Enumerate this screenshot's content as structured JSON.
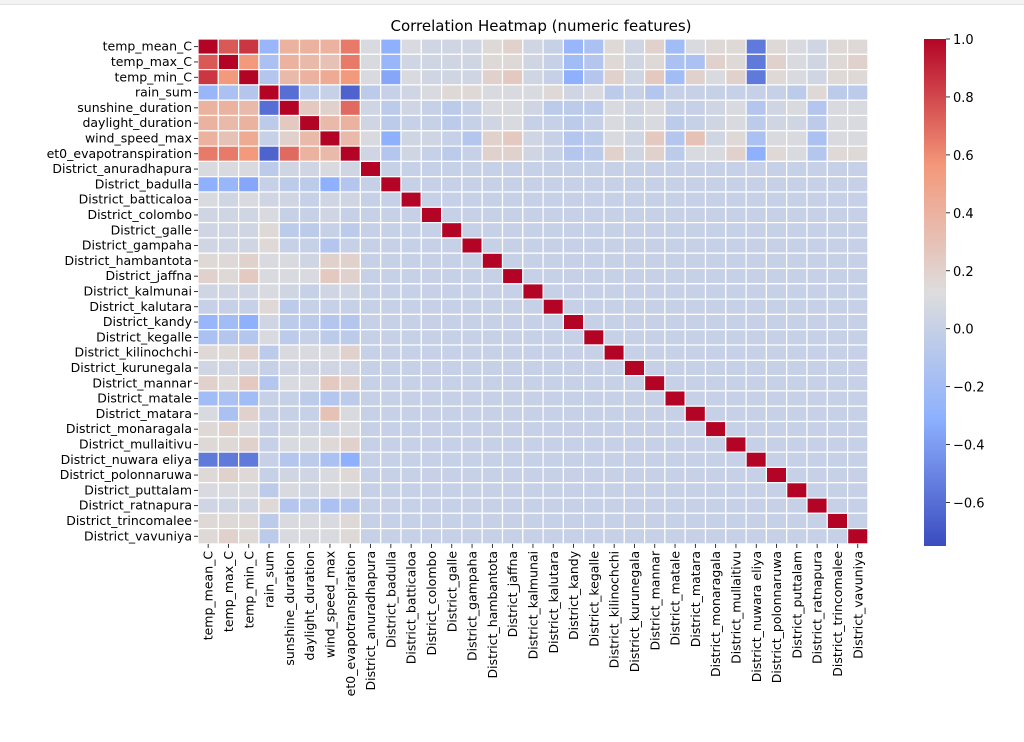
{
  "chart_data": {
    "type": "heatmap",
    "title": "Correlation Heatmap (numeric features)",
    "xlabel": "",
    "ylabel": "",
    "labels": [
      "temp_mean_C",
      "temp_max_C",
      "temp_min_C",
      "rain_sum",
      "sunshine_duration",
      "daylight_duration",
      "wind_speed_max",
      "et0_evapotranspiration",
      "District_anuradhapura",
      "District_badulla",
      "District_batticaloa",
      "District_colombo",
      "District_galle",
      "District_gampaha",
      "District_hambantota",
      "District_jaffna",
      "District_kalmunai",
      "District_kalutara",
      "District_kandy",
      "District_kegalle",
      "District_kilinochchi",
      "District_kurunegala",
      "District_mannar",
      "District_matale",
      "District_matara",
      "District_monaragala",
      "District_mullaitivu",
      "District_nuwara eliya",
      "District_polonnaruwa",
      "District_puttalam",
      "District_ratnapura",
      "District_trincomalee",
      "District_vavuniya"
    ],
    "colorbar": {
      "min": -0.75,
      "max": 1.0,
      "ticks": [
        1.0,
        0.8,
        0.6,
        0.4,
        0.2,
        0.0,
        -0.2,
        -0.4,
        -0.6
      ],
      "tick_labels": [
        "1.0",
        "0.8",
        "0.6",
        "0.4",
        "0.2",
        "0.0",
        "−0.2",
        "−0.4",
        "−0.6"
      ],
      "colormap": "coolwarm"
    },
    "matrix": [
      [
        1.0,
        0.75,
        0.85,
        -0.25,
        0.4,
        0.4,
        0.4,
        0.65,
        0.1,
        -0.3,
        0.1,
        0.05,
        0.05,
        0.05,
        0.15,
        0.2,
        0.05,
        0.0,
        -0.25,
        -0.15,
        0.15,
        0.05,
        0.2,
        -0.2,
        0.1,
        0.15,
        0.15,
        -0.55,
        0.15,
        0.1,
        0.05,
        0.15,
        0.15
      ],
      [
        0.75,
        1.0,
        0.55,
        -0.15,
        0.4,
        0.35,
        0.3,
        0.65,
        0.1,
        -0.25,
        0.05,
        0.05,
        0.05,
        0.05,
        0.15,
        0.15,
        0.05,
        0.0,
        -0.2,
        -0.1,
        0.15,
        0.05,
        0.15,
        -0.15,
        -0.15,
        0.2,
        0.15,
        -0.55,
        0.2,
        0.1,
        0.05,
        0.15,
        0.2
      ],
      [
        0.85,
        0.55,
        1.0,
        -0.1,
        0.35,
        0.4,
        0.45,
        0.55,
        0.1,
        -0.35,
        0.1,
        0.05,
        0.05,
        0.05,
        0.2,
        0.25,
        0.05,
        0.0,
        -0.3,
        -0.1,
        0.2,
        0.05,
        0.25,
        -0.2,
        0.2,
        0.1,
        0.2,
        -0.55,
        0.15,
        0.1,
        0.05,
        0.15,
        0.15
      ],
      [
        -0.25,
        -0.15,
        -0.1,
        1.0,
        -0.6,
        -0.05,
        0.0,
        -0.65,
        -0.05,
        0.0,
        0.05,
        0.1,
        0.15,
        0.15,
        0.1,
        0.1,
        0.1,
        0.15,
        0.05,
        0.1,
        -0.05,
        0.0,
        -0.1,
        0.0,
        0.0,
        0.0,
        0.0,
        0.0,
        0.0,
        -0.05,
        0.15,
        -0.05,
        -0.05
      ],
      [
        0.4,
        0.4,
        0.35,
        -0.6,
        1.0,
        0.25,
        0.2,
        0.7,
        0.05,
        -0.05,
        0.05,
        0.0,
        -0.05,
        0.0,
        0.1,
        0.1,
        0.05,
        -0.05,
        -0.05,
        -0.05,
        0.1,
        0.05,
        0.1,
        0.0,
        0.0,
        0.05,
        0.1,
        -0.1,
        0.05,
        0.1,
        -0.1,
        0.1,
        0.1
      ],
      [
        0.4,
        0.35,
        0.4,
        -0.05,
        0.25,
        1.0,
        0.35,
        0.4,
        0.05,
        -0.05,
        0.0,
        0.0,
        -0.05,
        0.0,
        0.05,
        0.1,
        0.0,
        0.0,
        -0.05,
        0.0,
        0.1,
        0.05,
        0.1,
        -0.05,
        0.0,
        0.05,
        0.1,
        -0.05,
        0.05,
        0.05,
        -0.05,
        0.1,
        0.1
      ],
      [
        0.4,
        0.3,
        0.45,
        0.0,
        0.2,
        0.35,
        1.0,
        0.35,
        0.1,
        -0.3,
        0.05,
        0.05,
        0.0,
        -0.1,
        0.2,
        0.25,
        0.05,
        0.0,
        -0.1,
        -0.05,
        0.1,
        0.05,
        0.25,
        -0.1,
        0.3,
        0.05,
        0.15,
        -0.15,
        0.1,
        0.1,
        -0.15,
        0.1,
        0.1
      ],
      [
        0.65,
        0.65,
        0.55,
        -0.65,
        0.7,
        0.4,
        0.35,
        1.0,
        0.05,
        -0.1,
        0.05,
        0.0,
        -0.05,
        0.0,
        0.2,
        0.2,
        0.05,
        0.0,
        -0.1,
        -0.05,
        0.2,
        0.05,
        0.2,
        -0.05,
        0.1,
        0.1,
        0.2,
        -0.3,
        0.15,
        0.1,
        -0.1,
        0.15,
        0.15
      ],
      [
        0.1,
        0.1,
        0.1,
        -0.05,
        0.05,
        0.05,
        0.1,
        0.05,
        1.0,
        0,
        0,
        0,
        0,
        0,
        0,
        0,
        0,
        0,
        0,
        0,
        0,
        0,
        0,
        0,
        0,
        0,
        0,
        0,
        0,
        0,
        0,
        0,
        0
      ],
      [
        -0.3,
        -0.25,
        -0.35,
        0.0,
        -0.05,
        -0.05,
        -0.3,
        -0.1,
        0,
        1.0,
        0,
        0,
        0,
        0,
        0,
        0,
        0,
        0,
        0,
        0,
        0,
        0,
        0,
        0,
        0,
        0,
        0,
        0,
        0,
        0,
        0,
        0,
        0
      ],
      [
        0.1,
        0.05,
        0.1,
        0.05,
        0.05,
        0.0,
        0.05,
        0.05,
        0,
        0,
        1.0,
        0,
        0,
        0,
        0,
        0,
        0,
        0,
        0,
        0,
        0,
        0,
        0,
        0,
        0,
        0,
        0,
        0,
        0,
        0,
        0,
        0,
        0
      ],
      [
        0.05,
        0.05,
        0.05,
        0.1,
        0.0,
        0.0,
        0.05,
        0.0,
        0,
        0,
        0,
        1.0,
        0,
        0,
        0,
        0,
        0,
        0,
        0,
        0,
        0,
        0,
        0,
        0,
        0,
        0,
        0,
        0,
        0,
        0,
        0,
        0,
        0
      ],
      [
        0.05,
        0.05,
        0.05,
        0.15,
        -0.05,
        -0.05,
        0.0,
        -0.05,
        0,
        0,
        0,
        0,
        1.0,
        0,
        0,
        0,
        0,
        0,
        0,
        0,
        0,
        0,
        0,
        0,
        0,
        0,
        0,
        0,
        0,
        0,
        0,
        0,
        0
      ],
      [
        0.05,
        0.05,
        0.05,
        0.15,
        0.0,
        0.0,
        -0.1,
        0.0,
        0,
        0,
        0,
        0,
        0,
        1.0,
        0,
        0,
        0,
        0,
        0,
        0,
        0,
        0,
        0,
        0,
        0,
        0,
        0,
        0,
        0,
        0,
        0,
        0,
        0
      ],
      [
        0.15,
        0.15,
        0.2,
        0.1,
        0.1,
        0.05,
        0.2,
        0.2,
        0,
        0,
        0,
        0,
        0,
        0,
        1.0,
        0,
        0,
        0,
        0,
        0,
        0,
        0,
        0,
        0,
        0,
        0,
        0,
        0,
        0,
        0,
        0,
        0,
        0
      ],
      [
        0.2,
        0.15,
        0.25,
        0.1,
        0.1,
        0.1,
        0.25,
        0.2,
        0,
        0,
        0,
        0,
        0,
        0,
        0,
        1.0,
        0,
        0,
        0,
        0,
        0,
        0,
        0,
        0,
        0,
        0,
        0,
        0,
        0,
        0,
        0,
        0,
        0
      ],
      [
        0.05,
        0.05,
        0.05,
        0.1,
        0.05,
        0.0,
        0.05,
        0.05,
        0,
        0,
        0,
        0,
        0,
        0,
        0,
        0,
        1.0,
        0,
        0,
        0,
        0,
        0,
        0,
        0,
        0,
        0,
        0,
        0,
        0,
        0,
        0,
        0,
        0
      ],
      [
        0.0,
        0.0,
        0.0,
        0.15,
        -0.05,
        0.0,
        0.0,
        0.0,
        0,
        0,
        0,
        0,
        0,
        0,
        0,
        0,
        0,
        1.0,
        0,
        0,
        0,
        0,
        0,
        0,
        0,
        0,
        0,
        0,
        0,
        0,
        0,
        0,
        0
      ],
      [
        -0.25,
        -0.2,
        -0.3,
        0.05,
        -0.05,
        -0.05,
        -0.1,
        -0.1,
        0,
        0,
        0,
        0,
        0,
        0,
        0,
        0,
        0,
        0,
        1.0,
        0,
        0,
        0,
        0,
        0,
        0,
        0,
        0,
        0,
        0,
        0,
        0,
        0,
        0
      ],
      [
        -0.15,
        -0.1,
        -0.1,
        0.1,
        -0.05,
        0.0,
        -0.05,
        -0.05,
        0,
        0,
        0,
        0,
        0,
        0,
        0,
        0,
        0,
        0,
        0,
        1.0,
        0,
        0,
        0,
        0,
        0,
        0,
        0,
        0,
        0,
        0,
        0,
        0,
        0
      ],
      [
        0.15,
        0.15,
        0.2,
        -0.05,
        0.1,
        0.1,
        0.1,
        0.2,
        0,
        0,
        0,
        0,
        0,
        0,
        0,
        0,
        0,
        0,
        0,
        0,
        1.0,
        0,
        0,
        0,
        0,
        0,
        0,
        0,
        0,
        0,
        0,
        0,
        0
      ],
      [
        0.05,
        0.05,
        0.05,
        0.0,
        0.05,
        0.05,
        0.05,
        0.05,
        0,
        0,
        0,
        0,
        0,
        0,
        0,
        0,
        0,
        0,
        0,
        0,
        0,
        1.0,
        0,
        0,
        0,
        0,
        0,
        0,
        0,
        0,
        0,
        0,
        0
      ],
      [
        0.2,
        0.15,
        0.25,
        -0.1,
        0.1,
        0.1,
        0.25,
        0.2,
        0,
        0,
        0,
        0,
        0,
        0,
        0,
        0,
        0,
        0,
        0,
        0,
        0,
        0,
        1.0,
        0,
        0,
        0,
        0,
        0,
        0,
        0,
        0,
        0,
        0
      ],
      [
        -0.2,
        -0.15,
        -0.2,
        0.0,
        0.0,
        -0.05,
        -0.1,
        -0.05,
        0,
        0,
        0,
        0,
        0,
        0,
        0,
        0,
        0,
        0,
        0,
        0,
        0,
        0,
        0,
        1.0,
        0,
        0,
        0,
        0,
        0,
        0,
        0,
        0,
        0
      ],
      [
        0.1,
        -0.15,
        0.2,
        0.0,
        0.0,
        0.0,
        0.3,
        0.1,
        0,
        0,
        0,
        0,
        0,
        0,
        0,
        0,
        0,
        0,
        0,
        0,
        0,
        0,
        0,
        0,
        1.0,
        0,
        0,
        0,
        0,
        0,
        0,
        0,
        0
      ],
      [
        0.15,
        0.2,
        0.1,
        0.0,
        0.05,
        0.05,
        0.05,
        0.1,
        0,
        0,
        0,
        0,
        0,
        0,
        0,
        0,
        0,
        0,
        0,
        0,
        0,
        0,
        0,
        0,
        0,
        1.0,
        0,
        0,
        0,
        0,
        0,
        0,
        0
      ],
      [
        0.15,
        0.15,
        0.2,
        0.0,
        0.1,
        0.1,
        0.15,
        0.2,
        0,
        0,
        0,
        0,
        0,
        0,
        0,
        0,
        0,
        0,
        0,
        0,
        0,
        0,
        0,
        0,
        0,
        0,
        1.0,
        0,
        0,
        0,
        0,
        0,
        0
      ],
      [
        -0.55,
        -0.55,
        -0.55,
        0.0,
        -0.1,
        -0.05,
        -0.15,
        -0.3,
        0,
        0,
        0,
        0,
        0,
        0,
        0,
        0,
        0,
        0,
        0,
        0,
        0,
        0,
        0,
        0,
        0,
        0,
        0,
        1.0,
        0,
        0,
        0,
        0,
        0
      ],
      [
        0.15,
        0.2,
        0.15,
        0.0,
        0.05,
        0.05,
        0.1,
        0.15,
        0,
        0,
        0,
        0,
        0,
        0,
        0,
        0,
        0,
        0,
        0,
        0,
        0,
        0,
        0,
        0,
        0,
        0,
        0,
        0,
        1.0,
        0,
        0,
        0,
        0
      ],
      [
        0.1,
        0.1,
        0.1,
        -0.05,
        0.1,
        0.05,
        0.1,
        0.1,
        0,
        0,
        0,
        0,
        0,
        0,
        0,
        0,
        0,
        0,
        0,
        0,
        0,
        0,
        0,
        0,
        0,
        0,
        0,
        0,
        0,
        1.0,
        0,
        0,
        0
      ],
      [
        0.05,
        0.05,
        0.05,
        0.15,
        -0.1,
        -0.05,
        -0.15,
        -0.1,
        0,
        0,
        0,
        0,
        0,
        0,
        0,
        0,
        0,
        0,
        0,
        0,
        0,
        0,
        0,
        0,
        0,
        0,
        0,
        0,
        0,
        0,
        1.0,
        0,
        0
      ],
      [
        0.15,
        0.15,
        0.15,
        -0.05,
        0.1,
        0.1,
        0.1,
        0.15,
        0,
        0,
        0,
        0,
        0,
        0,
        0,
        0,
        0,
        0,
        0,
        0,
        0,
        0,
        0,
        0,
        0,
        0,
        0,
        0,
        0,
        0,
        0,
        1.0,
        0
      ],
      [
        0.15,
        0.2,
        0.15,
        -0.05,
        0.1,
        0.1,
        0.1,
        0.15,
        0,
        0,
        0,
        0,
        0,
        0,
        0,
        0,
        0,
        0,
        0,
        0,
        0,
        0,
        0,
        0,
        0,
        0,
        0,
        0,
        0,
        0,
        0,
        0,
        1.0
      ]
    ]
  }
}
